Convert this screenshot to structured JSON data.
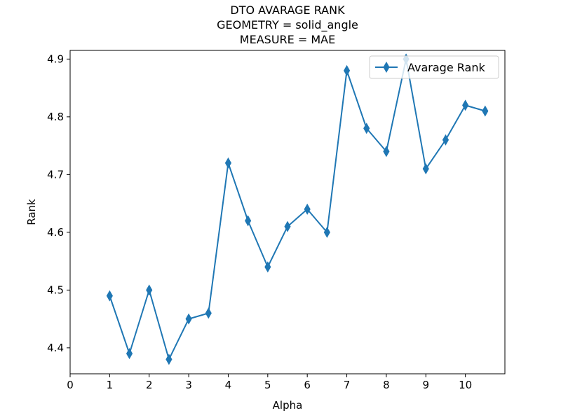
{
  "chart_data": {
    "type": "line",
    "title_lines": [
      "DTO AVARAGE RANK",
      "GEOMETRY = solid_angle",
      "MEASURE = MAE"
    ],
    "xlabel": "Alpha",
    "ylabel": "Rank",
    "xlim": [
      0,
      11
    ],
    "ylim": [
      4.355,
      4.915
    ],
    "xticks": [
      "0",
      "1",
      "2",
      "3",
      "4",
      "5",
      "6",
      "7",
      "8",
      "9",
      "10"
    ],
    "yticks": [
      "4.4",
      "4.5",
      "4.6",
      "4.7",
      "4.8",
      "4.9"
    ],
    "legend_position": "top-right",
    "grid": false,
    "series": [
      {
        "name": "Avarage Rank",
        "color": "#1f77b4",
        "marker": "thin-diamond",
        "x": [
          1,
          1.5,
          2,
          2.5,
          3,
          3.5,
          4,
          4.5,
          5,
          5.5,
          6,
          6.5,
          7,
          7.5,
          8,
          8.5,
          9,
          9.5,
          10,
          10.5
        ],
        "y": [
          4.49,
          4.39,
          4.5,
          4.38,
          4.45,
          4.46,
          4.72,
          4.62,
          4.54,
          4.61,
          4.64,
          4.6,
          4.88,
          4.78,
          4.74,
          4.9,
          4.71,
          4.76,
          4.82,
          4.81
        ]
      }
    ]
  }
}
